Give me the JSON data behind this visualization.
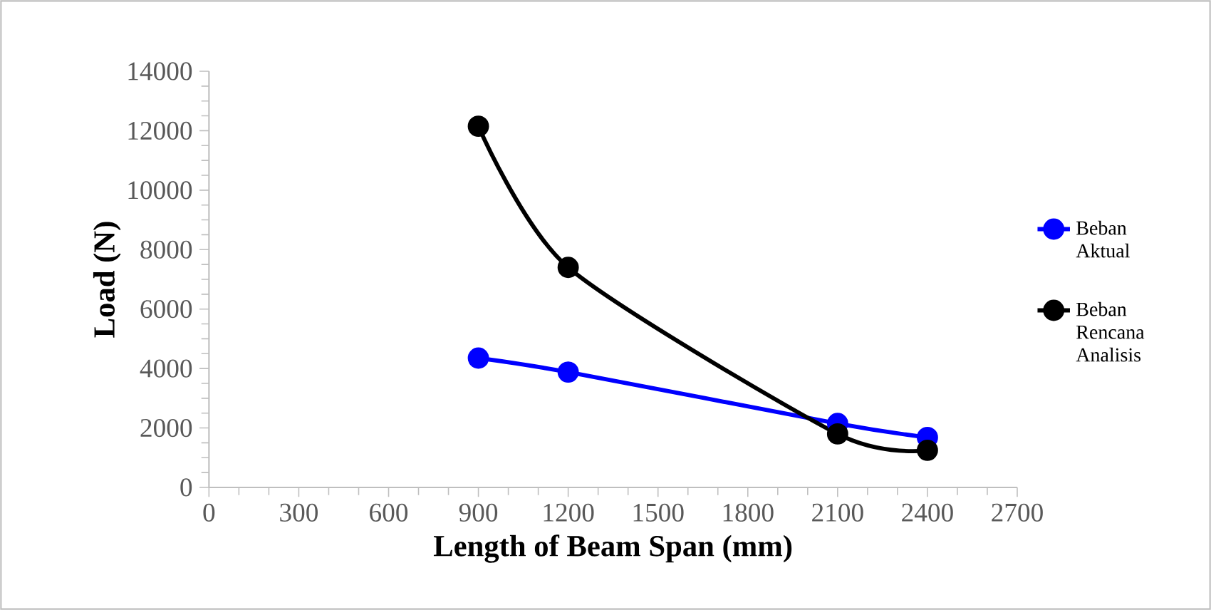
{
  "chart_data": {
    "type": "line",
    "xlabel": "Length of Beam Span (mm)",
    "ylabel": "Load (N)",
    "x": [
      900,
      1200,
      2100,
      2400
    ],
    "series": [
      {
        "name": "Beban Aktual",
        "color": "#0000ff",
        "values": [
          4350,
          3880,
          2150,
          1680
        ]
      },
      {
        "name": "Beban Rencana Analisis",
        "color": "#000000",
        "values": [
          12150,
          7400,
          1800,
          1250
        ]
      }
    ],
    "xlim": [
      0,
      2700
    ],
    "xticks": [
      0,
      300,
      600,
      900,
      1200,
      1500,
      1800,
      2100,
      2400,
      2700
    ],
    "ylim": [
      0,
      14000
    ],
    "yticks": [
      0,
      2000,
      4000,
      6000,
      8000,
      10000,
      12000,
      14000
    ],
    "grid": false,
    "legend": "right",
    "marker": "circle",
    "line_style": "solid"
  }
}
